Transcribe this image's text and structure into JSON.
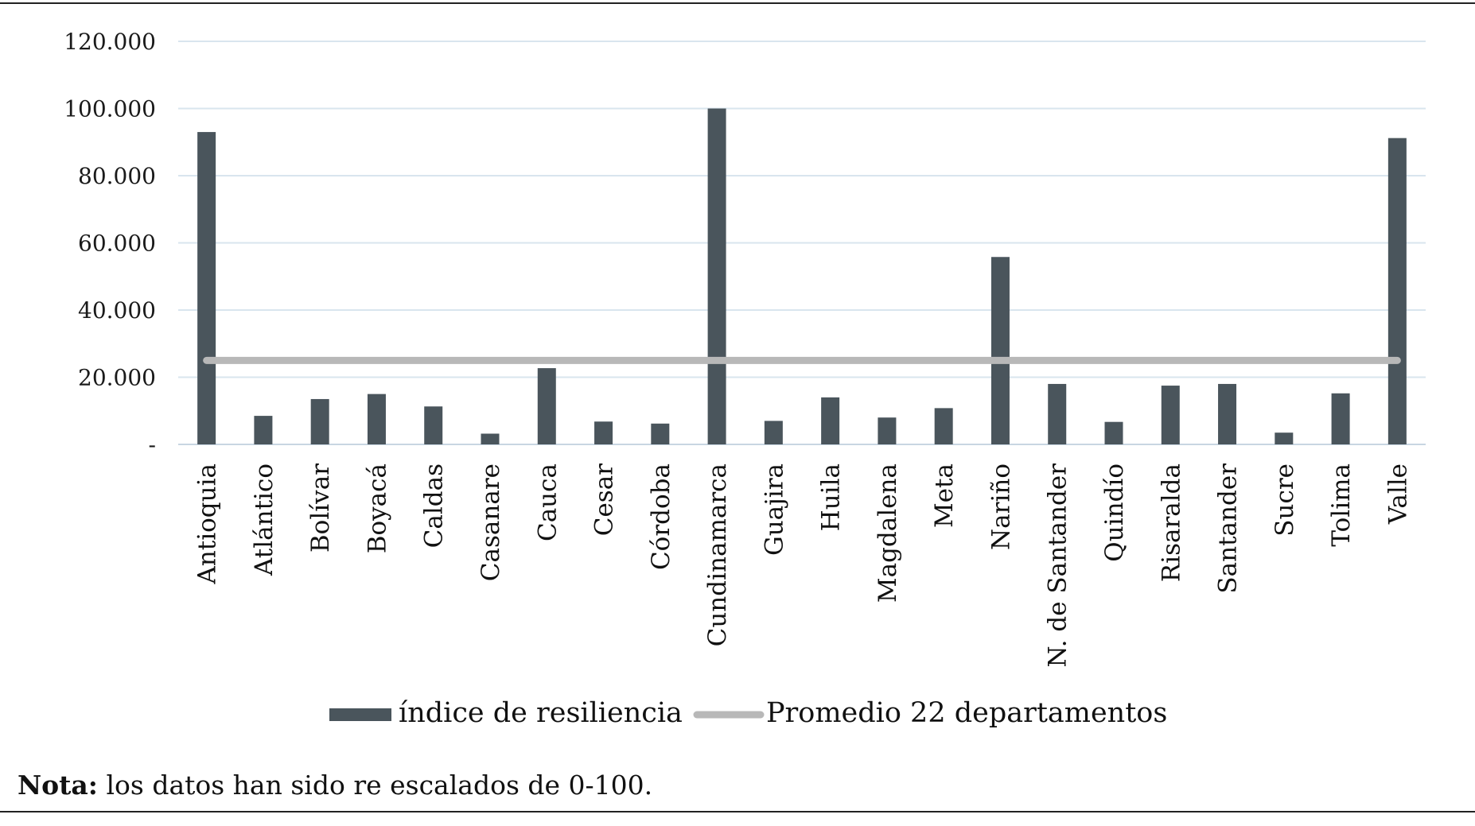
{
  "chart_data": {
    "type": "bar",
    "categories": [
      "Antioquia",
      "Atlántico",
      "Bolívar",
      "Boyacá",
      "Caldas",
      "Casanare",
      "Cauca",
      "Cesar",
      "Córdoba",
      "Cundinamarca",
      "Guajira",
      "Huila",
      "Magdalena",
      "Meta",
      "Nariño",
      "N. de Santander",
      "Quindío",
      "Risaralda",
      "Santander",
      "Sucre",
      "Tolima",
      "Valle"
    ],
    "series": [
      {
        "name": "índice de resiliencia",
        "values": [
          93,
          8.5,
          13.5,
          15,
          11.3,
          3.2,
          22.7,
          6.8,
          6.2,
          100,
          7,
          14,
          8,
          10.8,
          55.8,
          18,
          6.7,
          17.5,
          18,
          3.5,
          15.2,
          91.2
        ],
        "color": "#4a555c"
      },
      {
        "name": "Promedio 22 departamentos",
        "type": "line",
        "value": 25,
        "color": "#b8b8b8"
      }
    ],
    "yticks": [
      "-",
      "20.000",
      "40.000",
      "60.000",
      "80.000",
      "100.000",
      "120.000"
    ],
    "ylim": [
      0,
      120
    ],
    "grid": true,
    "legend_position": "bottom"
  },
  "note": {
    "label": "Nota:",
    "text": " los datos han sido re escalados de 0-100."
  }
}
